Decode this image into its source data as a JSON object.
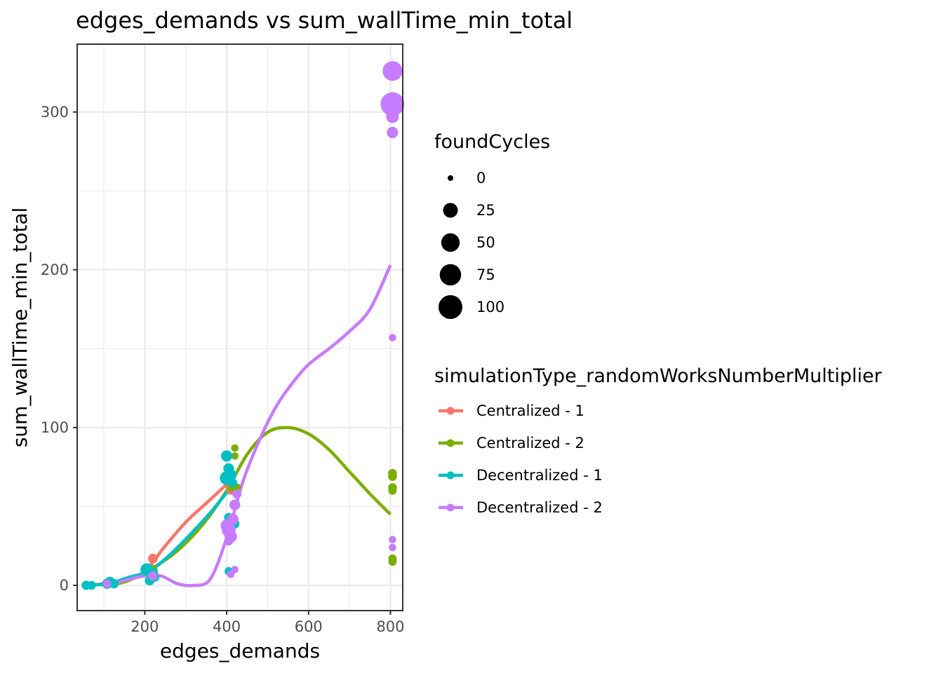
{
  "chart_data": {
    "type": "scatter",
    "title": "edges_demands  vs  sum_wallTime_min_total",
    "xlabel": "edges_demands",
    "ylabel": "sum_wallTime_min_total",
    "xlim": [
      35,
      830
    ],
    "ylim": [
      -16,
      343
    ],
    "xticks": [
      200,
      400,
      600,
      800
    ],
    "yticks": [
      0,
      100,
      200,
      300
    ],
    "grid": true,
    "legend_position": "right",
    "size_legend": {
      "title": "foundCycles",
      "values": [
        0,
        25,
        50,
        75,
        100
      ],
      "labels": [
        "0",
        "25",
        "50",
        "75",
        "100"
      ]
    },
    "color_legend": {
      "title": "simulationType_randomWorksNumberMultiplier"
    },
    "series": [
      {
        "name": "Centralized - 1",
        "color": "#F8766D",
        "points": [
          [
            57,
            0,
            1
          ],
          [
            70,
            0,
            1
          ],
          [
            110,
            1,
            2
          ],
          [
            220,
            17,
            5
          ],
          [
            215,
            6,
            2
          ],
          [
            400,
            81,
            2
          ],
          [
            405,
            64,
            3
          ],
          [
            410,
            60,
            2
          ]
        ],
        "smooth": [
          [
            57,
            0
          ],
          [
            100,
            1
          ],
          [
            150,
            3
          ],
          [
            200,
            9
          ],
          [
            250,
            25
          ],
          [
            300,
            40
          ],
          [
            350,
            52
          ],
          [
            400,
            64
          ]
        ]
      },
      {
        "name": "Centralized - 2",
        "color": "#7CAE00",
        "points": [
          [
            110,
            1,
            2
          ],
          [
            220,
            10,
            4
          ],
          [
            412,
            62,
            3
          ],
          [
            420,
            87,
            1
          ],
          [
            420,
            82,
            1
          ],
          [
            425,
            62,
            2
          ],
          [
            805,
            71,
            3
          ],
          [
            805,
            69,
            3
          ],
          [
            805,
            62,
            3
          ],
          [
            805,
            60,
            2
          ],
          [
            805,
            17,
            2
          ],
          [
            805,
            15,
            2
          ]
        ],
        "smooth": [
          [
            110,
            0
          ],
          [
            160,
            3
          ],
          [
            220,
            11
          ],
          [
            280,
            22
          ],
          [
            340,
            38
          ],
          [
            400,
            60
          ],
          [
            450,
            83
          ],
          [
            500,
            97
          ],
          [
            550,
            100
          ],
          [
            600,
            96
          ],
          [
            650,
            86
          ],
          [
            700,
            72
          ],
          [
            750,
            58
          ],
          [
            800,
            45
          ]
        ]
      },
      {
        "name": "Decentralized - 1",
        "color": "#00BFC4",
        "points": [
          [
            57,
            0,
            4
          ],
          [
            70,
            0,
            3
          ],
          [
            108,
            1,
            6
          ],
          [
            115,
            2,
            8
          ],
          [
            125,
            1,
            4
          ],
          [
            205,
            10,
            15
          ],
          [
            212,
            3,
            5
          ],
          [
            220,
            8,
            6
          ],
          [
            225,
            5,
            3
          ],
          [
            400,
            82,
            10
          ],
          [
            405,
            74,
            8
          ],
          [
            410,
            70,
            10
          ],
          [
            400,
            68,
            20
          ],
          [
            415,
            65,
            3
          ],
          [
            405,
            9,
            2
          ],
          [
            410,
            7,
            1
          ],
          [
            420,
            39,
            4
          ],
          [
            405,
            43,
            4
          ]
        ],
        "smooth": [
          [
            57,
            0
          ],
          [
            110,
            1
          ],
          [
            160,
            5
          ],
          [
            210,
            9
          ],
          [
            260,
            19
          ],
          [
            310,
            32
          ],
          [
            360,
            46
          ],
          [
            410,
            62
          ]
        ]
      },
      {
        "name": "Decentralized - 2",
        "color": "#C77CFF",
        "points": [
          [
            108,
            1,
            2
          ],
          [
            220,
            6,
            4
          ],
          [
            400,
            38,
            12
          ],
          [
            405,
            35,
            20
          ],
          [
            410,
            31,
            14
          ],
          [
            415,
            42,
            10
          ],
          [
            420,
            51,
            8
          ],
          [
            425,
            58,
            4
          ],
          [
            405,
            28,
            3
          ],
          [
            420,
            10,
            1
          ],
          [
            410,
            7,
            1
          ],
          [
            805,
            326,
            60
          ],
          [
            805,
            305,
            100
          ],
          [
            805,
            297,
            15
          ],
          [
            805,
            287,
            10
          ],
          [
            805,
            157,
            1
          ],
          [
            805,
            29,
            1
          ],
          [
            805,
            24,
            1
          ]
        ],
        "smooth": [
          [
            108,
            0
          ],
          [
            150,
            3
          ],
          [
            200,
            6
          ],
          [
            240,
            6
          ],
          [
            280,
            1
          ],
          [
            320,
            0
          ],
          [
            360,
            4
          ],
          [
            400,
            30
          ],
          [
            440,
            66
          ],
          [
            480,
            92
          ],
          [
            520,
            113
          ],
          [
            560,
            128
          ],
          [
            600,
            140
          ],
          [
            650,
            150
          ],
          [
            700,
            161
          ],
          [
            750,
            175
          ],
          [
            800,
            203
          ]
        ]
      }
    ]
  }
}
